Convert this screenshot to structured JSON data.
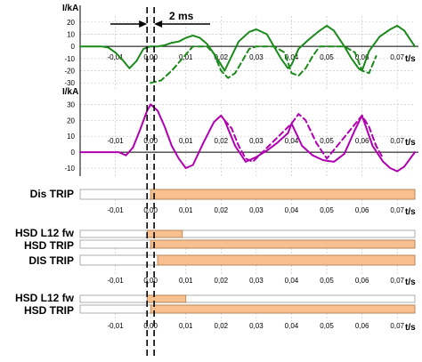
{
  "chart_data": [
    {
      "type": "line",
      "ylabel": "I/kA",
      "xlabel": "t/s",
      "xlim": [
        -0.02,
        0.075
      ],
      "ylim": [
        -35,
        25
      ],
      "yticks": [
        20,
        10,
        0,
        -10,
        -20,
        -30
      ],
      "xticks": [
        "-0,01",
        "0,00",
        "0,01",
        "0,02",
        "0,03",
        "0,04",
        "0,05",
        "0,06",
        "0,07"
      ],
      "grid": true,
      "series": [
        {
          "style": "solid",
          "color": "#1a8a1a",
          "x": [
            -0.02,
            -0.014,
            -0.012,
            -0.01,
            -0.008,
            -0.006,
            -0.004,
            -0.002,
            0.0,
            0.002,
            0.004,
            0.006,
            0.008,
            0.01,
            0.012,
            0.014,
            0.016,
            0.018,
            0.02,
            0.021,
            0.023,
            0.025,
            0.028,
            0.03,
            0.033,
            0.035,
            0.037,
            0.039,
            0.04,
            0.042,
            0.045,
            0.048,
            0.05,
            0.052,
            0.055,
            0.057,
            0.059,
            0.06,
            0.062,
            0.065,
            0.068,
            0.07,
            0.072,
            0.075
          ],
          "y": [
            0,
            0,
            -1,
            -5,
            -11,
            -18,
            -12,
            -2,
            0,
            0,
            1,
            3,
            4,
            7,
            9,
            7,
            2,
            -6,
            -15,
            -20,
            -8,
            4,
            12,
            14,
            10,
            0,
            -10,
            -18,
            -15,
            -2,
            6,
            13,
            17,
            13,
            0,
            -10,
            -18,
            -20,
            -4,
            8,
            14,
            17,
            13,
            0
          ]
        },
        {
          "style": "dashed",
          "color": "#1a8a1a",
          "x": [
            0.0,
            0.003,
            0.006,
            0.009,
            0.012,
            0.016,
            0.018,
            0.02,
            0.022,
            0.024,
            0.026,
            0.028,
            0.03,
            0.035,
            0.038,
            0.04,
            0.042,
            0.044,
            0.046,
            0.048,
            0.05,
            0.055,
            0.058,
            0.06,
            0.062,
            0.064
          ],
          "y": [
            -30,
            -28,
            -20,
            -10,
            0,
            0,
            -6,
            -20,
            -26,
            -22,
            -12,
            -2,
            0,
            0,
            -5,
            -22,
            -24,
            -18,
            -8,
            0,
            0,
            0,
            -5,
            -20,
            -22,
            -8
          ]
        }
      ]
    },
    {
      "type": "line",
      "ylabel": "I/kA",
      "xlabel": "t/s",
      "xlim": [
        -0.02,
        0.075
      ],
      "ylim": [
        -15,
        33
      ],
      "yticks": [
        30,
        20,
        10,
        0,
        -10
      ],
      "xticks": [
        "-0,01",
        "0,00",
        "0,01",
        "0,02",
        "0,03",
        "0,04",
        "0,05",
        "0,06",
        "0,07"
      ],
      "grid": true,
      "series": [
        {
          "style": "solid",
          "color": "#b000b0",
          "x": [
            -0.02,
            -0.011,
            -0.009,
            -0.007,
            -0.005,
            -0.003,
            -0.001,
            0.0,
            0.002,
            0.004,
            0.006,
            0.008,
            0.01,
            0.012,
            0.015,
            0.018,
            0.02,
            0.021,
            0.024,
            0.027,
            0.03,
            0.033,
            0.036,
            0.039,
            0.04,
            0.043,
            0.046,
            0.049,
            0.052,
            0.055,
            0.058,
            0.06,
            0.063,
            0.066,
            0.068,
            0.07,
            0.072,
            0.075
          ],
          "y": [
            0,
            0,
            0,
            -2,
            3,
            14,
            26,
            30,
            26,
            16,
            4,
            -4,
            -10,
            -8,
            6,
            19,
            23,
            20,
            4,
            -6,
            -3,
            1,
            6,
            12,
            18,
            4,
            -2,
            -5,
            -6,
            -1,
            14,
            23,
            4,
            -6,
            -10,
            -12,
            -9,
            0
          ]
        },
        {
          "style": "dashed",
          "color": "#b000b0",
          "x": [
            0.021,
            0.023,
            0.025,
            0.027,
            0.029,
            0.04,
            0.042,
            0.044,
            0.047,
            0.05,
            0.06,
            0.062,
            0.064,
            0.066
          ],
          "y": [
            20,
            15,
            4,
            -4,
            -6,
            18,
            24,
            20,
            6,
            -4,
            23,
            16,
            4,
            -4
          ]
        }
      ]
    },
    {
      "type": "table",
      "rows": [
        {
          "label": "Dis TRIP",
          "tracks": [
            {
              "start": 0.0,
              "end": 0.075
            }
          ],
          "xlabel": "t/s"
        },
        {
          "label": "HSD L12 fw",
          "tracks": [
            {
              "start": -0.001,
              "end": 0.009
            }
          ],
          "xlabel": ""
        },
        {
          "label": "HSD TRIP",
          "tracks": [
            {
              "start": 0.0,
              "end": 0.075
            }
          ],
          "xlabel": "t/s"
        },
        {
          "label": "DIS TRIP",
          "tracks": [
            {
              "start": 0.002,
              "end": 0.075
            }
          ],
          "xlabel": "t/s"
        },
        {
          "label": "HSD L12 fw",
          "tracks": [
            {
              "start": -0.001,
              "end": 0.01
            }
          ],
          "xlabel": ""
        },
        {
          "label": "HSD TRIP",
          "tracks": [
            {
              "start": 0.0,
              "end": 0.075
            }
          ],
          "xlabel": "t/s"
        }
      ],
      "xticks": [
        "-0,01",
        "0,00",
        "0,01",
        "0,02",
        "0,03",
        "0,04",
        "0,05",
        "0,06",
        "0,07"
      ],
      "bar_color": "#f7c08e",
      "bar_stroke": "#b07a4a"
    }
  ],
  "annotation": {
    "text": "2 ms",
    "markers": [
      -0.001,
      0.001
    ]
  }
}
